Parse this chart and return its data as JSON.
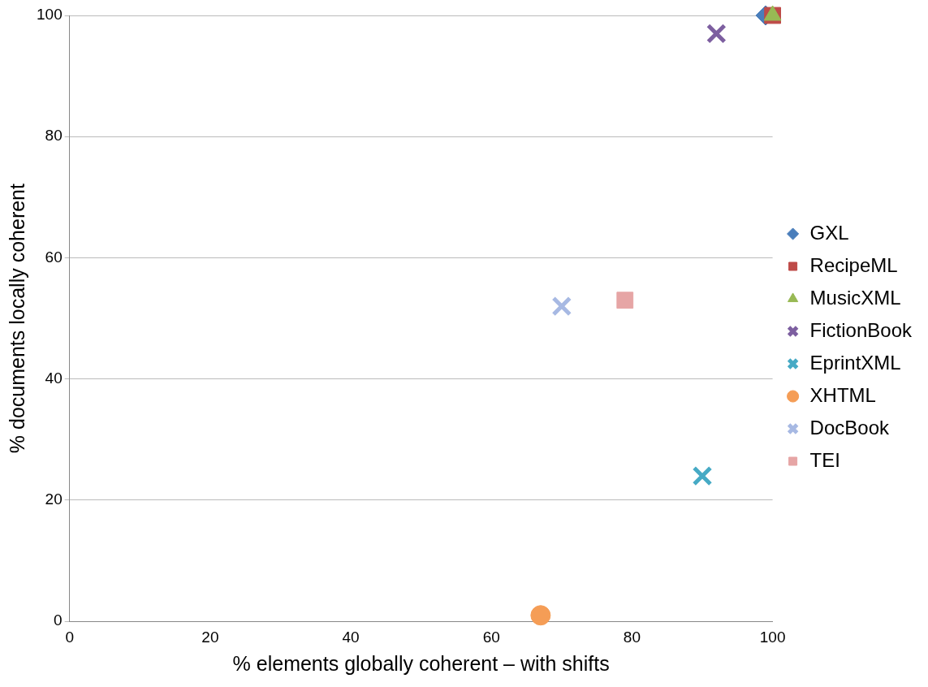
{
  "chart_data": {
    "type": "scatter",
    "xlabel": "% elements globally coherent – with shifts",
    "ylabel": "% documents locally coherent",
    "xlim": [
      0,
      100
    ],
    "xticks": [
      0,
      20,
      40,
      60,
      80,
      100
    ],
    "ylim": [
      0,
      100
    ],
    "yticks": [
      0,
      20,
      40,
      60,
      80,
      100
    ],
    "grid": "y",
    "legend": "right",
    "series": [
      {
        "name": "GXL",
        "color": "#4a7ebb",
        "marker": "diamond",
        "x": [
          99
        ],
        "values": [
          100
        ]
      },
      {
        "name": "RecipeML",
        "color": "#be4b48",
        "marker": "square",
        "x": [
          100
        ],
        "values": [
          100
        ]
      },
      {
        "name": "MusicXML",
        "color": "#98b954",
        "marker": "triangle",
        "x": [
          100
        ],
        "values": [
          100
        ]
      },
      {
        "name": "FictionBook",
        "color": "#7d5fa0",
        "marker": "cross",
        "x": [
          92
        ],
        "values": [
          97
        ]
      },
      {
        "name": "EprintXML",
        "color": "#46aac5",
        "marker": "cross",
        "x": [
          90
        ],
        "values": [
          24
        ]
      },
      {
        "name": "XHTML",
        "color": "#f59d56",
        "marker": "circle",
        "x": [
          67
        ],
        "values": [
          1
        ]
      },
      {
        "name": "DocBook",
        "color": "#a7b9e3",
        "marker": "cross",
        "x": [
          70
        ],
        "values": [
          52
        ]
      },
      {
        "name": "TEI",
        "color": "#e6a5a5",
        "marker": "square",
        "x": [
          79
        ],
        "values": [
          53
        ]
      }
    ]
  }
}
